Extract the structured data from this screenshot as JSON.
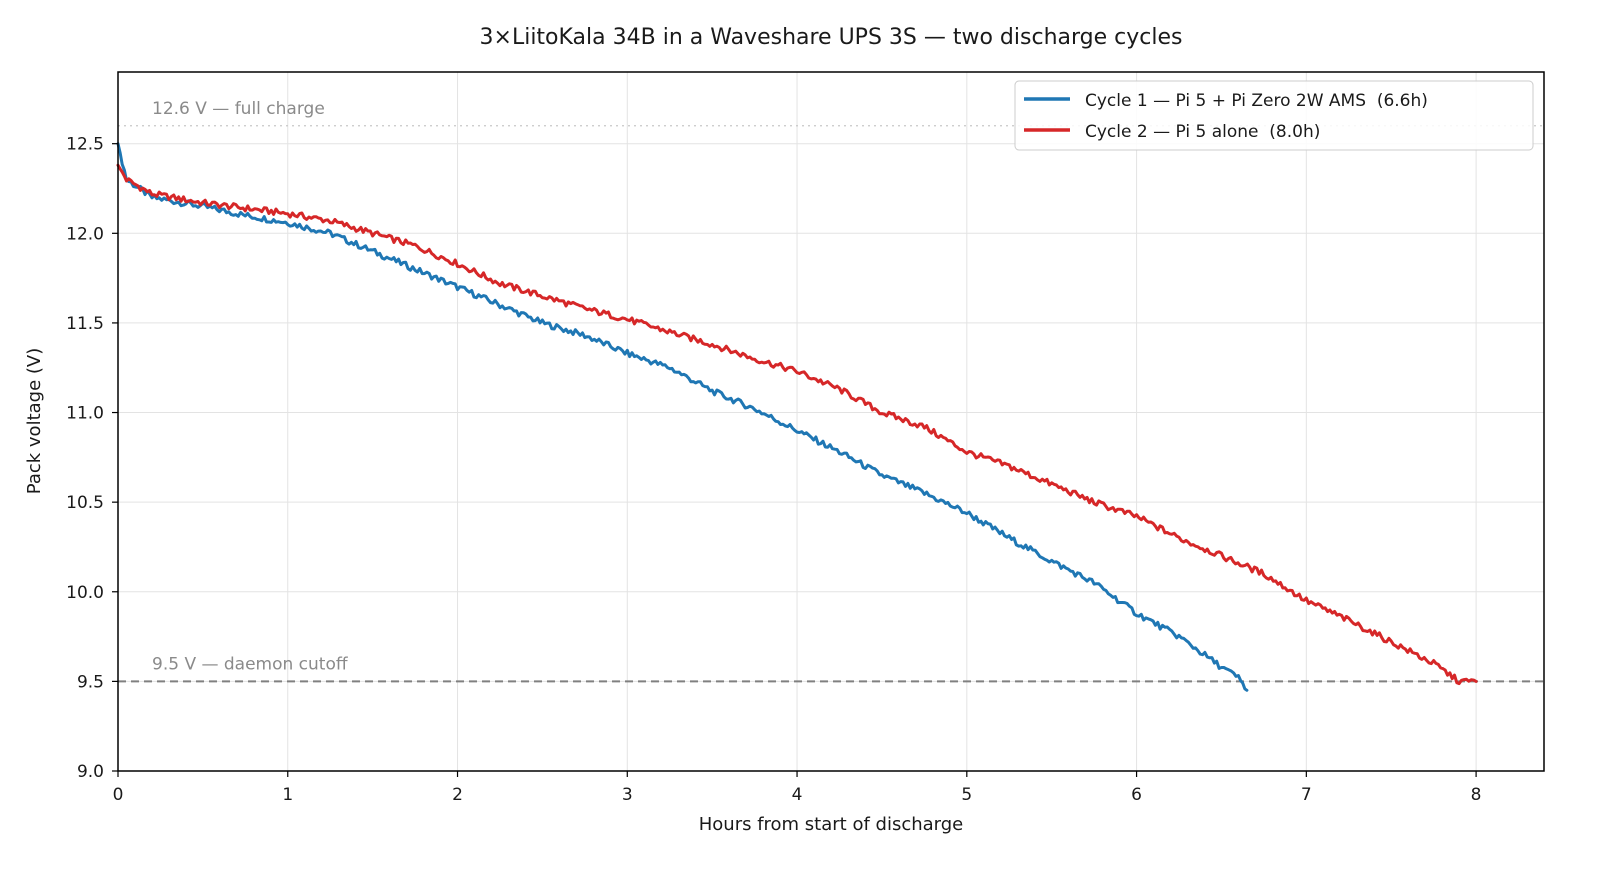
{
  "chart_data": {
    "type": "line",
    "title": "3×LiitoKala 34B in a Waveshare UPS 3S — two discharge cycles",
    "xlabel": "Hours from start of discharge",
    "ylabel": "Pack voltage (V)",
    "xlim": [
      0,
      8.4
    ],
    "ylim": [
      9.0,
      12.9
    ],
    "x_ticks": [
      0,
      1,
      2,
      3,
      4,
      5,
      6,
      7,
      8
    ],
    "x_tick_labels": [
      "0",
      "1",
      "2",
      "3",
      "4",
      "5",
      "6",
      "7",
      "8"
    ],
    "y_ticks": [
      9.0,
      9.5,
      10.0,
      10.5,
      11.0,
      11.5,
      12.0,
      12.5
    ],
    "y_tick_labels": [
      "9.0",
      "9.5",
      "10.0",
      "10.5",
      "11.0",
      "11.5",
      "12.0",
      "12.5"
    ],
    "grid": true,
    "legend_position": "top-right",
    "reference_lines": [
      {
        "y": 12.6,
        "label": "12.6 V — full charge",
        "style": "dotted",
        "color": "#c8c8c8"
      },
      {
        "y": 9.5,
        "label": "9.5 V — daemon cutoff",
        "style": "dashed",
        "color": "#808080"
      }
    ],
    "series": [
      {
        "name": "Cycle 1 — Pi 5 + Pi Zero 2W AMS  (6.6h)",
        "color": "#1f77b4",
        "x": [
          0,
          0.05,
          0.2,
          0.5,
          0.75,
          1.0,
          1.25,
          1.5,
          1.75,
          2.0,
          2.25,
          2.5,
          2.75,
          3.0,
          3.25,
          3.5,
          3.75,
          4.0,
          4.25,
          4.5,
          4.75,
          5.0,
          5.25,
          5.5,
          5.75,
          6.0,
          6.25,
          6.5,
          6.6,
          6.65
        ],
        "y": [
          12.5,
          12.3,
          12.2,
          12.15,
          12.1,
          12.06,
          12.0,
          11.9,
          11.8,
          11.7,
          11.6,
          11.5,
          11.43,
          11.33,
          11.25,
          11.12,
          11.02,
          10.9,
          10.78,
          10.65,
          10.55,
          10.44,
          10.3,
          10.17,
          10.05,
          9.88,
          9.75,
          9.58,
          9.52,
          9.45
        ]
      },
      {
        "name": "Cycle 2 — Pi 5 alone  (8.0h)",
        "color": "#d62728",
        "x": [
          0,
          0.05,
          0.2,
          0.5,
          0.75,
          1.0,
          1.25,
          1.5,
          1.75,
          2.0,
          2.25,
          2.5,
          2.75,
          3.0,
          3.25,
          3.5,
          3.75,
          4.0,
          4.25,
          4.5,
          4.75,
          5.0,
          5.25,
          5.5,
          5.75,
          6.0,
          6.25,
          6.5,
          6.75,
          7.0,
          7.25,
          7.5,
          7.75,
          7.9,
          8.0
        ],
        "y": [
          12.38,
          12.3,
          12.22,
          12.17,
          12.14,
          12.11,
          12.07,
          12.0,
          11.93,
          11.83,
          11.72,
          11.65,
          11.58,
          11.52,
          11.45,
          11.38,
          11.3,
          11.23,
          11.13,
          11.0,
          10.92,
          10.78,
          10.7,
          10.6,
          10.5,
          10.42,
          10.3,
          10.2,
          10.1,
          9.95,
          9.84,
          9.72,
          9.6,
          9.5,
          9.5
        ]
      }
    ]
  }
}
